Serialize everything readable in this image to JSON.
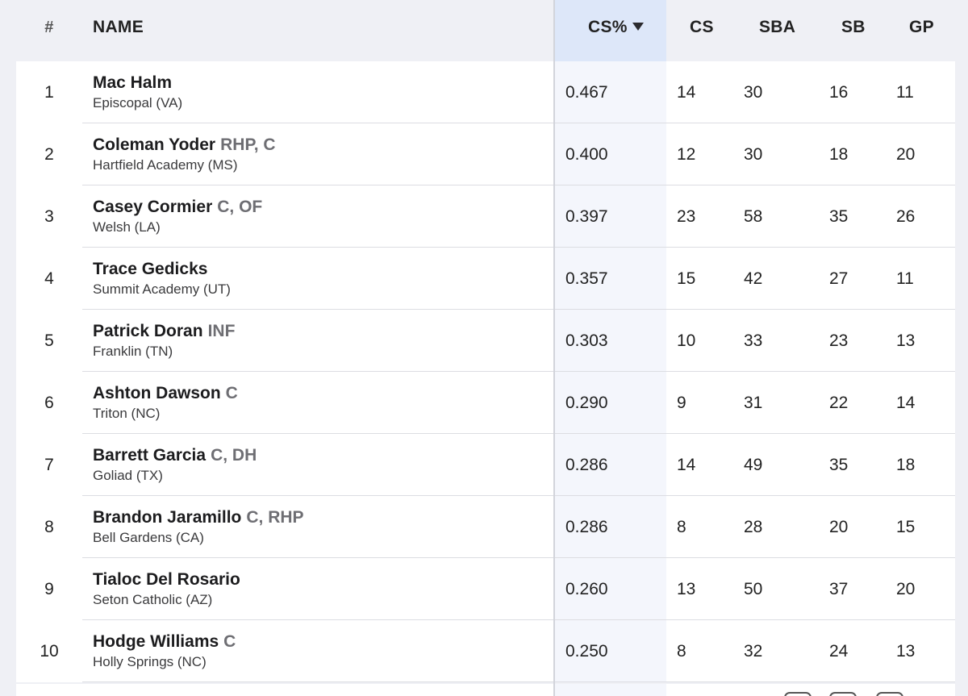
{
  "header": {
    "rank_label": "#",
    "name_label": "NAME",
    "cspct_label": "CS%",
    "cs_label": "CS",
    "sba_label": "SBA",
    "sb_label": "SB",
    "gp_label": "GP",
    "sorted_column": "CS%",
    "sort_direction": "descending"
  },
  "colors": {
    "background": "#eff0f5",
    "sorted_header": "#dde7f9",
    "sorted_column": "#f4f6fc",
    "position_text": "#6e6e73"
  },
  "rows": [
    {
      "rank": "1",
      "name": "Mac Halm",
      "positions": "",
      "school": "Episcopal (VA)",
      "cspct": "0.467",
      "cs": "14",
      "sba": "30",
      "sb": "16",
      "gp": "11"
    },
    {
      "rank": "2",
      "name": "Coleman Yoder",
      "positions": "RHP, C",
      "school": "Hartfield Academy (MS)",
      "cspct": "0.400",
      "cs": "12",
      "sba": "30",
      "sb": "18",
      "gp": "20"
    },
    {
      "rank": "3",
      "name": "Casey Cormier",
      "positions": "C, OF",
      "school": "Welsh (LA)",
      "cspct": "0.397",
      "cs": "23",
      "sba": "58",
      "sb": "35",
      "gp": "26"
    },
    {
      "rank": "4",
      "name": "Trace Gedicks",
      "positions": "",
      "school": "Summit Academy (UT)",
      "cspct": "0.357",
      "cs": "15",
      "sba": "42",
      "sb": "27",
      "gp": "11"
    },
    {
      "rank": "5",
      "name": "Patrick Doran",
      "positions": "INF",
      "school": "Franklin (TN)",
      "cspct": "0.303",
      "cs": "10",
      "sba": "33",
      "sb": "23",
      "gp": "13"
    },
    {
      "rank": "6",
      "name": "Ashton Dawson",
      "positions": "C",
      "school": "Triton (NC)",
      "cspct": "0.290",
      "cs": "9",
      "sba": "31",
      "sb": "22",
      "gp": "14"
    },
    {
      "rank": "7",
      "name": "Barrett Garcia",
      "positions": "C, DH",
      "school": "Goliad (TX)",
      "cspct": "0.286",
      "cs": "14",
      "sba": "49",
      "sb": "35",
      "gp": "18"
    },
    {
      "rank": "8",
      "name": "Brandon Jaramillo",
      "positions": "C, RHP",
      "school": "Bell Gardens (CA)",
      "cspct": "0.286",
      "cs": "8",
      "sba": "28",
      "sb": "20",
      "gp": "15"
    },
    {
      "rank": "9",
      "name": "Tialoc Del Rosario",
      "positions": "",
      "school": "Seton Catholic (AZ)",
      "cspct": "0.260",
      "cs": "13",
      "sba": "50",
      "sb": "37",
      "gp": "20"
    },
    {
      "rank": "10",
      "name": "Hodge Williams",
      "positions": "C",
      "school": "Holly Springs (NC)",
      "cspct": "0.250",
      "cs": "8",
      "sba": "32",
      "sb": "24",
      "gp": "13"
    }
  ]
}
